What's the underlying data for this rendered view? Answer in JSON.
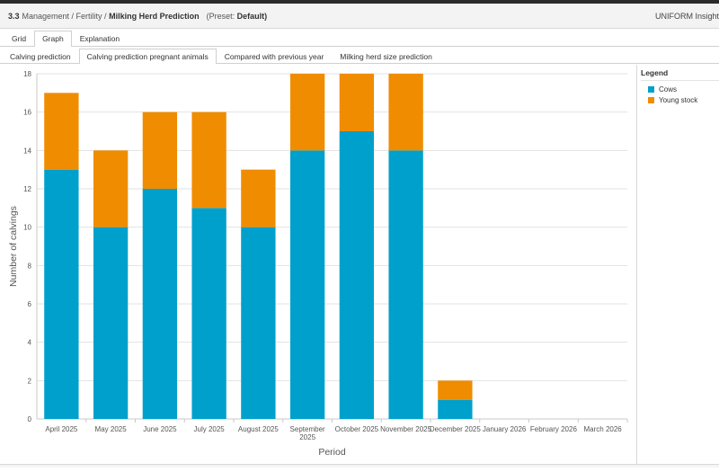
{
  "breadcrumb": {
    "number": "3.3",
    "path": "Management / Fertility /",
    "page": "Milking Herd Prediction",
    "preset_prefix": "(Preset:",
    "preset_value": "Default)",
    "brand": "UNIFORM Insight"
  },
  "view_tabs": [
    "Grid",
    "Graph",
    "Explanation"
  ],
  "chart_tabs": [
    "Calving prediction",
    "Calving prediction pregnant animals",
    "Compared with previous year",
    "Milking herd size prediction"
  ],
  "legend": {
    "title": "Legend",
    "items": [
      {
        "label": "Cows",
        "color": "#00a0cc"
      },
      {
        "label": "Young stock",
        "color": "#f08c00"
      }
    ]
  },
  "chart_data": {
    "type": "bar",
    "stacked": true,
    "categories": [
      "April 2025",
      "May 2025",
      "June 2025",
      "July 2025",
      "August 2025",
      "September 2025",
      "October 2025",
      "November 2025",
      "December 2025",
      "January 2026",
      "February 2026",
      "March 2026"
    ],
    "series": [
      {
        "name": "Cows",
        "color": "#00a0cc",
        "values": [
          13,
          10,
          12,
          11,
          10,
          14,
          15,
          14,
          1,
          0,
          0,
          0
        ]
      },
      {
        "name": "Young stock",
        "color": "#f08c00",
        "values": [
          4,
          4,
          4,
          5,
          3,
          4,
          3,
          4,
          1,
          0,
          0,
          0
        ]
      }
    ],
    "xlabel": "Period",
    "ylabel": "Number of calvings",
    "ylim": [
      0,
      18
    ],
    "yticks": [
      0,
      2,
      4,
      6,
      8,
      10,
      12,
      14,
      16,
      18
    ],
    "grid": true,
    "legend_position": "right"
  }
}
